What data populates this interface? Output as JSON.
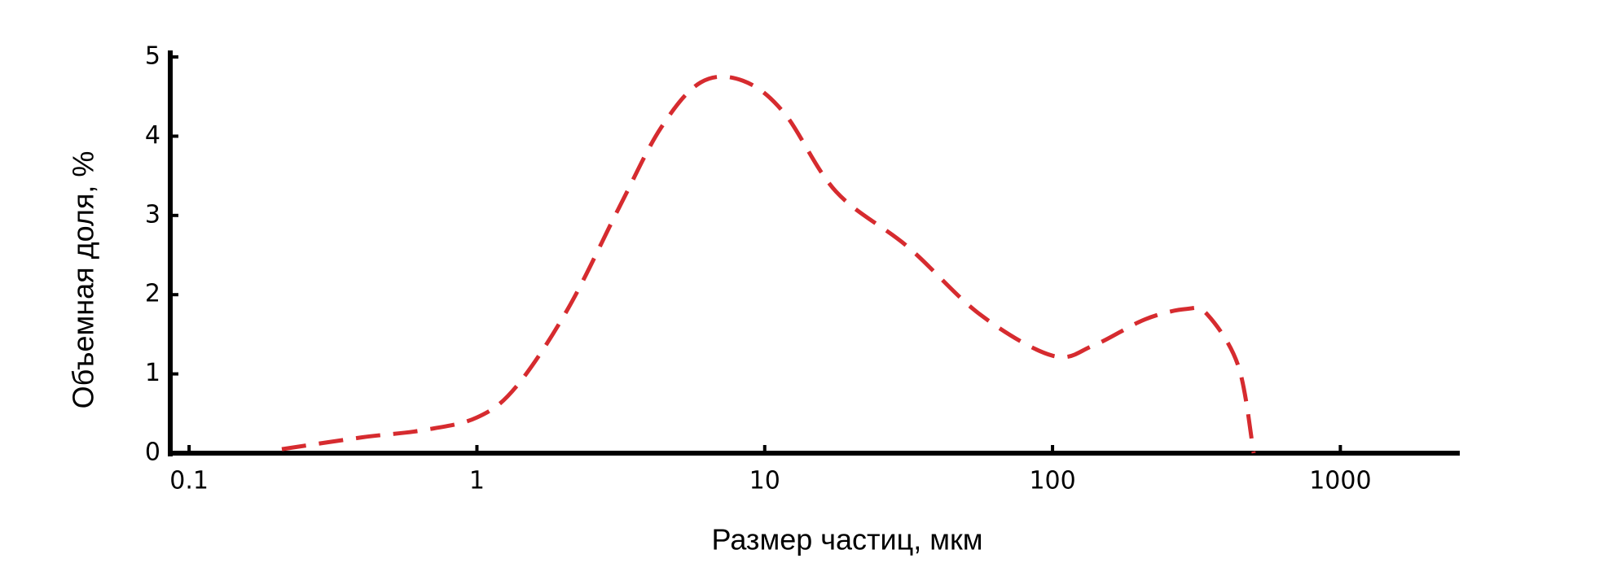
{
  "chart_data": {
    "type": "line",
    "xlabel": "Размер частиц, мкм",
    "ylabel": "Объемная доля, %",
    "xscale": "log",
    "x": [
      0.21,
      0.4,
      0.65,
      1,
      1.37,
      2.07,
      3.12,
      4.35,
      6.0,
      8.4,
      11.7,
      17.7,
      31.5,
      56,
      100,
      139,
      210,
      292,
      345,
      442,
      500
    ],
    "series": [
      {
        "color": "#d62b2f",
        "dashed": true,
        "values": [
          0.05,
          0.2,
          0.29,
          0.45,
          0.84,
          1.82,
          3.1,
          4.1,
          4.68,
          4.7,
          4.29,
          3.3,
          2.6,
          1.75,
          1.23,
          1.36,
          1.69,
          1.82,
          1.75,
          1.1,
          0
        ]
      }
    ],
    "xlim": [
      0.086,
      2600
    ],
    "xticks": [
      0.1,
      1,
      10,
      100,
      1000
    ],
    "ylim": [
      0,
      5
    ],
    "yticks": [
      0,
      1,
      2,
      3,
      4,
      5
    ]
  }
}
